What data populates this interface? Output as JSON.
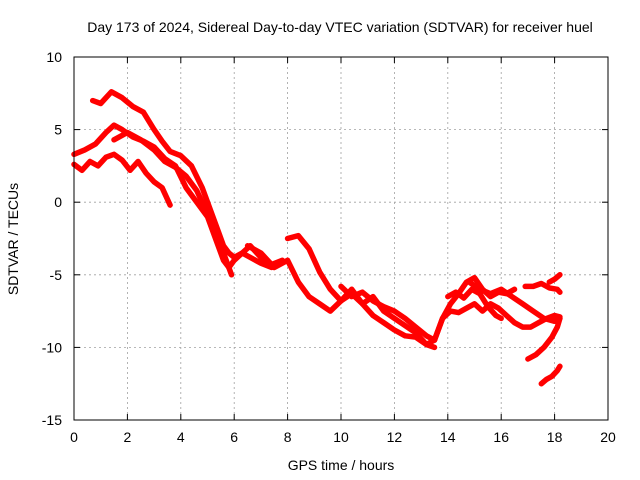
{
  "chart_data": {
    "type": "line",
    "title": "Day 173 of 2024, Sidereal Day-to-day VTEC variation (SDTVAR) for receiver huel",
    "xlabel": "GPS time / hours",
    "ylabel": "SDTVAR / TECUs",
    "xlim": [
      0,
      20
    ],
    "ylim": [
      -15,
      10
    ],
    "x_ticks": [
      "0",
      "2",
      "4",
      "6",
      "8",
      "10",
      "12",
      "14",
      "16",
      "18",
      "20"
    ],
    "y_ticks": [
      "10",
      "5",
      "0",
      "-5",
      "-10",
      "-15"
    ],
    "x_tick_values": [
      0,
      2,
      4,
      6,
      8,
      10,
      12,
      14,
      16,
      18,
      20
    ],
    "y_tick_values": [
      10,
      5,
      0,
      -5,
      -10,
      -15
    ],
    "grid": true,
    "color": "#ff0000",
    "series": [
      {
        "name": "satellite-trace-1",
        "x": [
          0.7,
          1.0,
          1.4,
          1.8,
          2.2,
          2.6,
          3.0,
          3.3,
          3.6,
          4.0,
          4.4,
          4.8,
          5.1,
          5.4,
          5.6,
          5.8,
          6.0,
          6.3,
          6.6,
          7.0,
          7.4,
          7.8
        ],
        "y": [
          7.0,
          6.8,
          7.6,
          7.2,
          6.6,
          6.2,
          5.0,
          4.2,
          3.5,
          3.2,
          2.5,
          1.0,
          -0.5,
          -2.0,
          -3.0,
          -3.5,
          -3.8,
          -3.5,
          -3.0,
          -3.8,
          -4.3,
          -4.0
        ]
      },
      {
        "name": "satellite-trace-2",
        "x": [
          0.0,
          0.4,
          0.8,
          1.2,
          1.5,
          1.8,
          2.2,
          2.6,
          3.0,
          3.4,
          3.8,
          4.2,
          4.6,
          5.0,
          5.3,
          5.6,
          5.8,
          6.0,
          6.3,
          6.6,
          7.0,
          7.4
        ],
        "y": [
          3.3,
          3.6,
          4.0,
          4.8,
          5.3,
          5.0,
          4.5,
          4.2,
          3.8,
          3.0,
          2.5,
          1.0,
          0.0,
          -1.0,
          -2.5,
          -4.0,
          -4.5,
          -4.0,
          -3.5,
          -3.8,
          -4.2,
          -4.5
        ]
      },
      {
        "name": "satellite-trace-3",
        "x": [
          0.0,
          0.3,
          0.6,
          0.9,
          1.2,
          1.5,
          1.8,
          2.1,
          2.4,
          2.7,
          3.0,
          3.3,
          3.6
        ],
        "y": [
          2.6,
          2.2,
          2.8,
          2.5,
          3.1,
          3.3,
          2.9,
          2.2,
          2.8,
          2.0,
          1.4,
          1.0,
          -0.2
        ]
      },
      {
        "name": "satellite-trace-4",
        "x": [
          1.5,
          2.0,
          2.5,
          3.0,
          3.4,
          3.8,
          4.2,
          4.6,
          5.0,
          5.3,
          5.6,
          5.9
        ],
        "y": [
          4.3,
          4.8,
          4.3,
          3.6,
          2.8,
          2.4,
          1.8,
          0.8,
          -0.8,
          -2.2,
          -3.5,
          -5.0
        ]
      },
      {
        "name": "satellite-trace-5",
        "x": [
          6.5,
          7.0,
          7.5,
          8.0,
          8.4,
          8.8,
          9.2,
          9.6,
          10.0,
          10.4,
          10.8,
          11.2,
          11.6,
          12.0,
          12.4,
          12.8,
          13.2,
          13.5
        ],
        "y": [
          -3.0,
          -3.5,
          -4.5,
          -4.0,
          -5.5,
          -6.5,
          -7.0,
          -7.5,
          -6.8,
          -6.0,
          -7.0,
          -6.5,
          -7.5,
          -8.0,
          -8.5,
          -9.0,
          -9.8,
          -9.5
        ]
      },
      {
        "name": "satellite-trace-6",
        "x": [
          8.0,
          8.4,
          8.8,
          9.2,
          9.6,
          10.0,
          10.4,
          10.8,
          11.2,
          11.6,
          12.0,
          12.4,
          12.8,
          13.2,
          13.5
        ],
        "y": [
          -2.5,
          -2.3,
          -3.2,
          -4.8,
          -6.0,
          -6.8,
          -6.3,
          -7.0,
          -7.8,
          -8.3,
          -8.8,
          -9.2,
          -9.3,
          -9.8,
          -10.0
        ]
      },
      {
        "name": "satellite-trace-7",
        "x": [
          10.0,
          10.4,
          10.8,
          11.2,
          11.6,
          12.0,
          12.4,
          12.8,
          13.2,
          13.5,
          13.8,
          14.1,
          14.4,
          14.7,
          15.0,
          15.3,
          15.6,
          15.9,
          16.2,
          16.5
        ],
        "y": [
          -5.8,
          -6.5,
          -6.2,
          -6.8,
          -7.2,
          -7.5,
          -8.0,
          -8.6,
          -9.2,
          -9.5,
          -8.0,
          -7.0,
          -6.3,
          -5.5,
          -5.2,
          -6.0,
          -6.5,
          -6.2,
          -6.3,
          -6.0
        ]
      },
      {
        "name": "satellite-trace-8",
        "x": [
          13.5,
          13.8,
          14.1,
          14.4,
          14.7,
          15.0,
          15.3,
          15.6,
          15.9,
          16.2,
          16.5,
          16.8,
          17.1,
          17.4,
          17.7,
          18.0,
          18.2
        ],
        "y": [
          -9.5,
          -8.0,
          -7.5,
          -7.6,
          -7.3,
          -7.0,
          -7.5,
          -7.0,
          -7.3,
          -7.8,
          -8.3,
          -8.6,
          -8.6,
          -8.3,
          -8.0,
          -7.8,
          -7.9
        ]
      },
      {
        "name": "satellite-trace-9",
        "x": [
          14.0,
          14.3,
          14.6,
          14.9,
          15.2,
          15.5,
          15.8,
          16.0
        ],
        "y": [
          -6.5,
          -6.2,
          -6.6,
          -6.0,
          -6.3,
          -7.2,
          -7.8,
          -8.0
        ]
      },
      {
        "name": "satellite-trace-10",
        "x": [
          14.8,
          15.2,
          15.6,
          16.0,
          16.4,
          16.8,
          17.2,
          17.6,
          18.0,
          18.2
        ],
        "y": [
          -5.5,
          -6.0,
          -6.3,
          -6.0,
          -6.5,
          -7.0,
          -7.5,
          -8.0,
          -8.2,
          -8.0
        ]
      },
      {
        "name": "satellite-trace-11",
        "x": [
          16.9,
          17.2,
          17.5,
          17.8,
          18.1,
          18.2
        ],
        "y": [
          -5.8,
          -5.8,
          -5.6,
          -5.9,
          -6.0,
          -6.2
        ]
      },
      {
        "name": "satellite-trace-12",
        "x": [
          17.0,
          17.3,
          17.6,
          17.9,
          18.1,
          18.2
        ],
        "y": [
          -10.8,
          -10.5,
          -10.0,
          -9.3,
          -8.6,
          -8.0
        ]
      },
      {
        "name": "satellite-trace-13",
        "x": [
          17.5,
          17.7,
          17.9,
          18.1,
          18.2
        ],
        "y": [
          -12.5,
          -12.2,
          -12.0,
          -11.6,
          -11.3
        ]
      },
      {
        "name": "satellite-trace-14",
        "x": [
          17.8,
          18.0,
          18.2
        ],
        "y": [
          -5.5,
          -5.3,
          -5.0
        ]
      }
    ]
  }
}
